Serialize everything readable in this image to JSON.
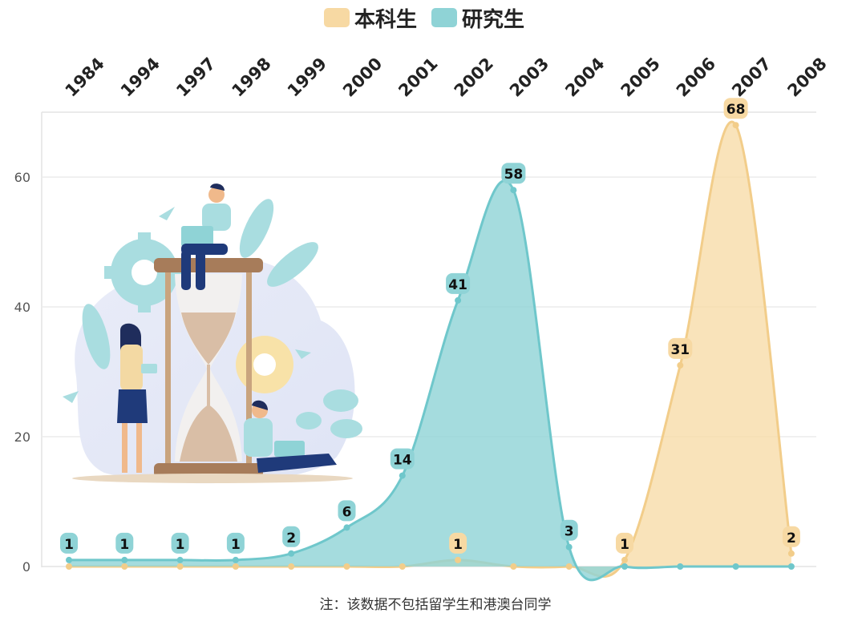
{
  "chart_data": {
    "type": "area",
    "x": [
      "1984",
      "1994",
      "1997",
      "1998",
      "1999",
      "2000",
      "2001",
      "2002",
      "2003",
      "2004",
      "2005",
      "2006",
      "2007",
      "2008"
    ],
    "series": [
      {
        "name": "本科生",
        "color": "#f7d9a3",
        "values": [
          0,
          0,
          0,
          0,
          0,
          0,
          0,
          1,
          0,
          0,
          1,
          31,
          68,
          2
        ],
        "labels": [
          null,
          null,
          null,
          null,
          null,
          null,
          null,
          1,
          null,
          null,
          1,
          31,
          68,
          2
        ]
      },
      {
        "name": "研究生",
        "color": "#8fd3d6",
        "values": [
          1,
          1,
          1,
          1,
          2,
          6,
          14,
          41,
          58,
          3,
          0,
          0,
          0,
          0
        ],
        "labels": [
          1,
          1,
          1,
          1,
          2,
          6,
          14,
          41,
          58,
          3,
          null,
          null,
          null,
          null
        ]
      }
    ],
    "ylim": [
      0,
      70
    ],
    "yticks": [
      "0",
      "20",
      "40",
      "60"
    ],
    "grid": true,
    "legend": "top-center",
    "x_axis_position": "top"
  },
  "note": "注：该数据不包括留学生和港澳台同学"
}
